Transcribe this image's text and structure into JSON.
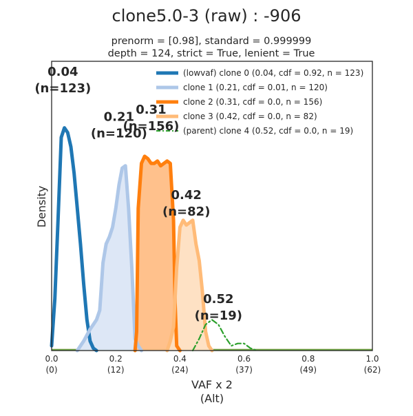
{
  "chart_data": {
    "type": "area",
    "title": "clone5.0-3 (raw) : -906",
    "subtitle_lines": [
      "prenorm = [0.98], standard = 0.999999",
      "depth = 124, strict = True, lenient = True"
    ],
    "xlabel_lines": [
      "VAF x 2",
      "(Alt)"
    ],
    "ylabel": "Density",
    "xlim": [
      0,
      1
    ],
    "ylim": [
      0,
      1
    ],
    "legend_position": "top-right",
    "grid": false,
    "x_ticks": [
      {
        "value": 0.0,
        "label": "0.0",
        "sublabel": "(0)"
      },
      {
        "value": 0.2,
        "label": "0.2",
        "sublabel": "(12)"
      },
      {
        "value": 0.4,
        "label": "0.4",
        "sublabel": "(24)"
      },
      {
        "value": 0.6,
        "label": "0.6",
        "sublabel": "(37)"
      },
      {
        "value": 0.8,
        "label": "0.8",
        "sublabel": "(49)"
      },
      {
        "value": 1.0,
        "label": "1.0",
        "sublabel": "(62)"
      }
    ],
    "series": [
      {
        "name": "(lowvaf) clone 0 (0.04, cdf = 0.92, n = 123)",
        "color": "#1f77b4",
        "fill": null,
        "line_style": "solid",
        "points": [
          [
            0.0,
            0.02
          ],
          [
            0.01,
            0.22
          ],
          [
            0.02,
            0.55
          ],
          [
            0.03,
            0.9
          ],
          [
            0.04,
            0.94
          ],
          [
            0.05,
            0.92
          ],
          [
            0.06,
            0.86
          ],
          [
            0.07,
            0.75
          ],
          [
            0.08,
            0.6
          ],
          [
            0.09,
            0.45
          ],
          [
            0.1,
            0.28
          ],
          [
            0.11,
            0.13
          ],
          [
            0.12,
            0.04
          ],
          [
            0.13,
            0.01
          ],
          [
            0.14,
            0.0
          ]
        ]
      },
      {
        "name": "clone 1 (0.21, cdf = 0.01, n = 120)",
        "color": "#aec7e8",
        "fill": "#dbe6f6",
        "line_style": "solid",
        "points": [
          [
            0.08,
            0.0
          ],
          [
            0.09,
            0.02
          ],
          [
            0.1,
            0.04
          ],
          [
            0.12,
            0.09
          ],
          [
            0.13,
            0.11
          ],
          [
            0.14,
            0.13
          ],
          [
            0.15,
            0.17
          ],
          [
            0.16,
            0.37
          ],
          [
            0.17,
            0.45
          ],
          [
            0.18,
            0.48
          ],
          [
            0.19,
            0.52
          ],
          [
            0.2,
            0.6
          ],
          [
            0.21,
            0.7
          ],
          [
            0.22,
            0.77
          ],
          [
            0.23,
            0.78
          ],
          [
            0.24,
            0.6
          ],
          [
            0.25,
            0.35
          ],
          [
            0.26,
            0.05
          ],
          [
            0.27,
            0.02
          ],
          [
            0.28,
            0.0
          ]
        ]
      },
      {
        "name": "clone 2 (0.31, cdf = 0.0, n = 156)",
        "color": "#ff7f0e",
        "fill": "#ffbe86",
        "line_style": "solid",
        "points": [
          [
            0.26,
            0.0
          ],
          [
            0.265,
            0.08
          ],
          [
            0.27,
            0.6
          ],
          [
            0.28,
            0.79
          ],
          [
            0.29,
            0.82
          ],
          [
            0.3,
            0.81
          ],
          [
            0.31,
            0.79
          ],
          [
            0.32,
            0.79
          ],
          [
            0.33,
            0.8
          ],
          [
            0.34,
            0.78
          ],
          [
            0.35,
            0.79
          ],
          [
            0.36,
            0.8
          ],
          [
            0.37,
            0.79
          ],
          [
            0.38,
            0.55
          ],
          [
            0.385,
            0.2
          ],
          [
            0.39,
            0.02
          ],
          [
            0.4,
            0.0
          ]
        ]
      },
      {
        "name": "clone 3 (0.42, cdf = 0.0, n = 82)",
        "color": "#ffbb78",
        "fill": "#fedfc1",
        "line_style": "solid",
        "points": [
          [
            0.36,
            0.0
          ],
          [
            0.37,
            0.04
          ],
          [
            0.38,
            0.1
          ],
          [
            0.39,
            0.35
          ],
          [
            0.4,
            0.52
          ],
          [
            0.41,
            0.55
          ],
          [
            0.42,
            0.53
          ],
          [
            0.43,
            0.54
          ],
          [
            0.44,
            0.55
          ],
          [
            0.45,
            0.45
          ],
          [
            0.46,
            0.38
          ],
          [
            0.47,
            0.25
          ],
          [
            0.48,
            0.08
          ],
          [
            0.49,
            0.02
          ],
          [
            0.5,
            0.0
          ]
        ]
      },
      {
        "name": "(parent) clone 4 (0.52, cdf = 0.0, n = 19)",
        "color": "#2ca02c",
        "fill": null,
        "line_style": "dashdot",
        "points": [
          [
            0.44,
            0.0
          ],
          [
            0.46,
            0.05
          ],
          [
            0.48,
            0.11
          ],
          [
            0.5,
            0.13
          ],
          [
            0.52,
            0.11
          ],
          [
            0.54,
            0.06
          ],
          [
            0.56,
            0.02
          ],
          [
            0.58,
            0.03
          ],
          [
            0.6,
            0.03
          ],
          [
            0.62,
            0.01
          ],
          [
            0.64,
            0.0
          ]
        ]
      }
    ],
    "annotations": [
      {
        "lines": [
          "0.04",
          "(n=123)"
        ],
        "x": 0.035,
        "y": 1.16
      },
      {
        "lines": [
          "0.21",
          "(n=120)"
        ],
        "x": 0.21,
        "y": 0.97
      },
      {
        "lines": [
          "0.31",
          "(n=156)"
        ],
        "x": 0.31,
        "y": 1.0
      },
      {
        "lines": [
          "0.42",
          "(n=82)"
        ],
        "x": 0.42,
        "y": 0.64
      },
      {
        "lines": [
          "0.52",
          "(n=19)"
        ],
        "x": 0.52,
        "y": 0.2
      }
    ]
  }
}
